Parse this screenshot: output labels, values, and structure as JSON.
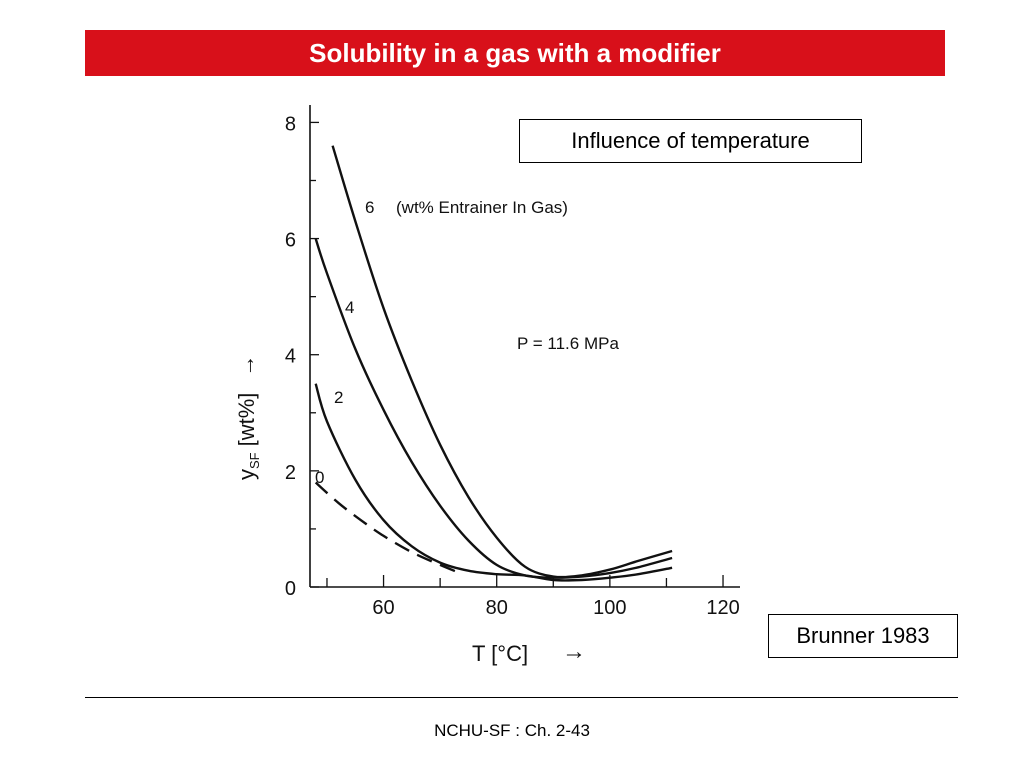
{
  "slide": {
    "title": "Solubility in a gas with a modifier",
    "inset_label": "Influence of temperature",
    "reference": "Brunner 1983",
    "footer": "NCHU-SF : Ch. 2-43"
  },
  "colors": {
    "title_bar": "#d8101a",
    "title_text": "#ffffff",
    "curve": "#111111"
  },
  "chart_data": {
    "type": "line",
    "xlabel": "T [°C]",
    "xlabel_arrow": "→",
    "ylabel_main": "y",
    "ylabel_sub": "SF",
    "ylabel_unit": "[wt%]",
    "ylabel_arrow": "→",
    "xlim": [
      47,
      123
    ],
    "ylim": [
      0,
      8.3
    ],
    "xticks": [
      60,
      80,
      100,
      120
    ],
    "yticks": [
      0,
      2,
      4,
      6,
      8
    ],
    "grid": false,
    "annotations": {
      "legend_note": "(wt% Entrainer In Gas)",
      "pressure": "P = 11.6 MPa"
    },
    "series": [
      {
        "name": "6",
        "dashed": false,
        "x": [
          51,
          55,
          60,
          65,
          70,
          75,
          80,
          85,
          90,
          95,
          100,
          105,
          111
        ],
        "y": [
          7.6,
          6.3,
          4.8,
          3.55,
          2.45,
          1.55,
          0.85,
          0.35,
          0.18,
          0.2,
          0.3,
          0.45,
          0.62
        ]
      },
      {
        "name": "4",
        "dashed": false,
        "x": [
          48,
          50,
          55,
          60,
          65,
          70,
          75,
          80,
          85,
          90,
          95,
          100,
          105,
          111
        ],
        "y": [
          6.0,
          5.4,
          4.1,
          3.05,
          2.15,
          1.4,
          0.8,
          0.38,
          0.2,
          0.16,
          0.18,
          0.24,
          0.34,
          0.5
        ]
      },
      {
        "name": "2",
        "dashed": false,
        "x": [
          48,
          50,
          55,
          60,
          65,
          70,
          75,
          80,
          85,
          90,
          95,
          100,
          105,
          111
        ],
        "y": [
          3.5,
          2.85,
          1.85,
          1.15,
          0.7,
          0.42,
          0.28,
          0.22,
          0.2,
          0.12,
          0.12,
          0.16,
          0.22,
          0.33
        ]
      },
      {
        "name": "0",
        "dashed": true,
        "x": [
          48,
          52,
          56,
          60,
          65,
          70,
          74
        ],
        "y": [
          1.8,
          1.45,
          1.15,
          0.88,
          0.6,
          0.38,
          0.22
        ]
      }
    ]
  }
}
